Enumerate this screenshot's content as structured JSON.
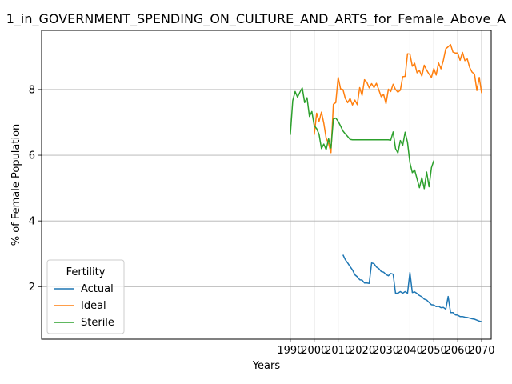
{
  "chart_data": {
    "type": "line",
    "title": "1_in_GOVERNMENT_SPENDING_ON_CULTURE_AND_ARTS_for_Female_Above_A",
    "xlabel": "Years",
    "ylabel": "% of Female Population",
    "xlim": [
      1886,
      2074
    ],
    "ylim": [
      0.4,
      9.8
    ],
    "xticks": [
      1990,
      2000,
      2010,
      2020,
      2030,
      2040,
      2050,
      2060,
      2070
    ],
    "yticks": [
      2,
      4,
      6,
      8
    ],
    "grid": true,
    "legend": {
      "title": "Fertility",
      "position": "lower-left"
    },
    "series": [
      {
        "name": "Actual",
        "color": "#1f77b4",
        "x": [
          2012,
          2013,
          2014,
          2015,
          2016,
          2017,
          2018,
          2019,
          2020,
          2021,
          2022,
          2023,
          2024,
          2025,
          2026,
          2027,
          2028,
          2029,
          2030,
          2031,
          2032,
          2033,
          2034,
          2035,
          2036,
          2037,
          2038,
          2039,
          2040,
          2041,
          2042,
          2043,
          2044,
          2045,
          2046,
          2047,
          2048,
          2049,
          2050,
          2051,
          2052,
          2053,
          2054,
          2055,
          2056,
          2057,
          2058,
          2059,
          2060,
          2061,
          2062,
          2063,
          2064,
          2065,
          2066,
          2067,
          2068,
          2069,
          2070
        ],
        "y": [
          2.97,
          2.82,
          2.72,
          2.61,
          2.51,
          2.36,
          2.3,
          2.21,
          2.2,
          2.11,
          2.11,
          2.1,
          2.72,
          2.7,
          2.6,
          2.55,
          2.46,
          2.44,
          2.37,
          2.33,
          2.4,
          2.38,
          1.8,
          1.8,
          1.85,
          1.8,
          1.85,
          1.8,
          2.43,
          1.82,
          1.84,
          1.79,
          1.73,
          1.69,
          1.62,
          1.59,
          1.52,
          1.45,
          1.44,
          1.39,
          1.4,
          1.36,
          1.37,
          1.31,
          1.7,
          1.21,
          1.21,
          1.14,
          1.13,
          1.09,
          1.09,
          1.07,
          1.06,
          1.04,
          1.02,
          1.01,
          0.98,
          0.95,
          0.93
        ]
      },
      {
        "name": "Ideal",
        "color": "#ff7f0e",
        "x": [
          2000,
          2001,
          2002,
          2003,
          2004,
          2005,
          2006,
          2007,
          2008,
          2009,
          2010,
          2011,
          2012,
          2013,
          2014,
          2015,
          2016,
          2017,
          2018,
          2019,
          2020,
          2021,
          2022,
          2023,
          2024,
          2025,
          2026,
          2027,
          2028,
          2029,
          2030,
          2031,
          2032,
          2033,
          2034,
          2035,
          2036,
          2037,
          2038,
          2039,
          2040,
          2041,
          2042,
          2043,
          2044,
          2045,
          2046,
          2047,
          2048,
          2049,
          2050,
          2051,
          2052,
          2053,
          2054,
          2055,
          2056,
          2057,
          2058,
          2059,
          2060,
          2061,
          2062,
          2063,
          2064,
          2065,
          2066,
          2067,
          2068,
          2069,
          2070
        ],
        "y": [
          6.62,
          7.28,
          7.03,
          7.31,
          6.98,
          6.52,
          6.36,
          6.08,
          7.55,
          7.6,
          8.37,
          8.02,
          8.0,
          7.73,
          7.6,
          7.73,
          7.53,
          7.68,
          7.54,
          8.06,
          7.82,
          8.3,
          8.22,
          8.05,
          8.18,
          8.06,
          8.19,
          7.99,
          7.78,
          7.85,
          7.57,
          8.01,
          7.94,
          8.16,
          8.0,
          7.92,
          7.98,
          8.39,
          8.4,
          9.09,
          9.08,
          8.71,
          8.8,
          8.51,
          8.58,
          8.41,
          8.74,
          8.59,
          8.47,
          8.37,
          8.64,
          8.44,
          8.81,
          8.63,
          8.89,
          9.24,
          9.3,
          9.37,
          9.14,
          9.11,
          9.11,
          8.89,
          9.13,
          8.88,
          8.93,
          8.67,
          8.53,
          8.47,
          7.97,
          8.37,
          7.89
        ]
      },
      {
        "name": "Sterile",
        "color": "#2ca02c",
        "x": [
          1990,
          1991,
          1992,
          1993,
          1994,
          1995,
          1996,
          1997,
          1998,
          1999,
          2000,
          2001,
          2002,
          2003,
          2004,
          2005,
          2006,
          2007,
          2008,
          2009,
          2010,
          2011,
          2012,
          2013,
          2014,
          2015,
          2016,
          2017,
          2018,
          2019,
          2020,
          2021,
          2022,
          2023,
          2024,
          2025,
          2026,
          2027,
          2028,
          2029,
          2030,
          2031,
          2032,
          2033,
          2034,
          2035,
          2036,
          2037,
          2038,
          2039,
          2040,
          2041,
          2042,
          2043,
          2044,
          2045,
          2046,
          2047,
          2048,
          2049,
          2050
        ],
        "y": [
          6.62,
          7.66,
          7.94,
          7.77,
          7.92,
          8.05,
          7.6,
          7.75,
          7.18,
          7.33,
          6.9,
          6.81,
          6.64,
          6.2,
          6.34,
          6.17,
          6.5,
          6.22,
          7.1,
          7.13,
          7.03,
          6.89,
          6.74,
          6.65,
          6.57,
          6.48,
          6.47,
          6.47,
          6.47,
          6.47,
          6.47,
          6.47,
          6.47,
          6.47,
          6.47,
          6.47,
          6.47,
          6.47,
          6.47,
          6.47,
          6.47,
          6.47,
          6.46,
          6.71,
          6.2,
          6.07,
          6.45,
          6.3,
          6.7,
          6.39,
          5.77,
          5.47,
          5.55,
          5.28,
          5.01,
          5.32,
          4.98,
          5.49,
          5.04,
          5.62,
          5.84
        ]
      }
    ]
  }
}
